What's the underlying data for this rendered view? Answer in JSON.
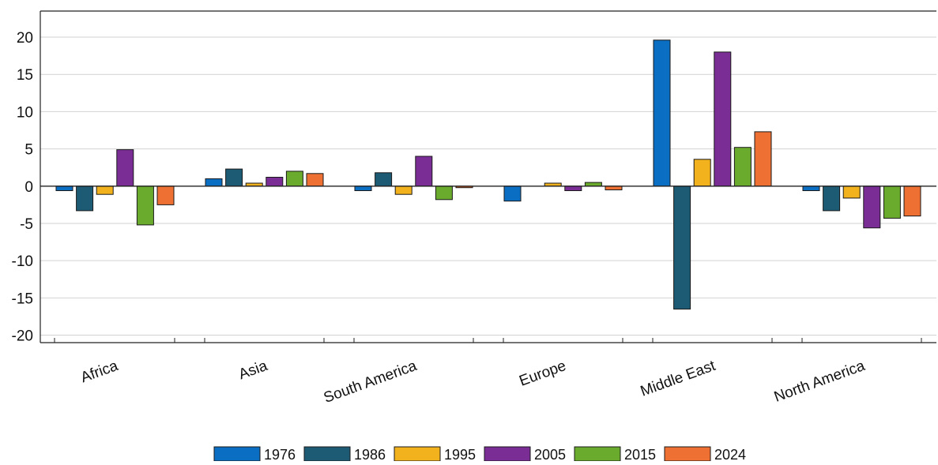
{
  "chart_data": {
    "type": "bar",
    "categories": [
      "Africa",
      "Asia",
      "South America",
      "Europe",
      "Middle East",
      "North America"
    ],
    "series": [
      {
        "name": "1976",
        "color": "#0a6fc2",
        "values": [
          -0.6,
          1.0,
          -0.6,
          -2.0,
          19.6,
          -0.6
        ]
      },
      {
        "name": "1986",
        "color": "#1d5a74",
        "values": [
          -3.3,
          2.3,
          1.8,
          0.0,
          -16.5,
          -3.3
        ]
      },
      {
        "name": "1995",
        "color": "#f2b21e",
        "values": [
          -1.1,
          0.4,
          -1.1,
          0.4,
          3.6,
          -1.6
        ]
      },
      {
        "name": "2005",
        "color": "#7b2d96",
        "values": [
          4.9,
          1.2,
          4.0,
          -0.6,
          18.0,
          -5.6
        ]
      },
      {
        "name": "2015",
        "color": "#6aaa2c",
        "values": [
          -5.2,
          2.0,
          -1.8,
          0.5,
          5.2,
          -4.3
        ]
      },
      {
        "name": "2024",
        "color": "#ee7033",
        "values": [
          -2.5,
          1.7,
          -0.2,
          -0.5,
          7.3,
          -4.0
        ]
      }
    ],
    "yticks": [
      -20,
      -15,
      -10,
      -5,
      0,
      5,
      10,
      15,
      20
    ],
    "ylim": [
      -21,
      23.5
    ],
    "title": "",
    "xlabel": "",
    "ylabel": "",
    "grid": true,
    "legend_position": "bottom"
  }
}
